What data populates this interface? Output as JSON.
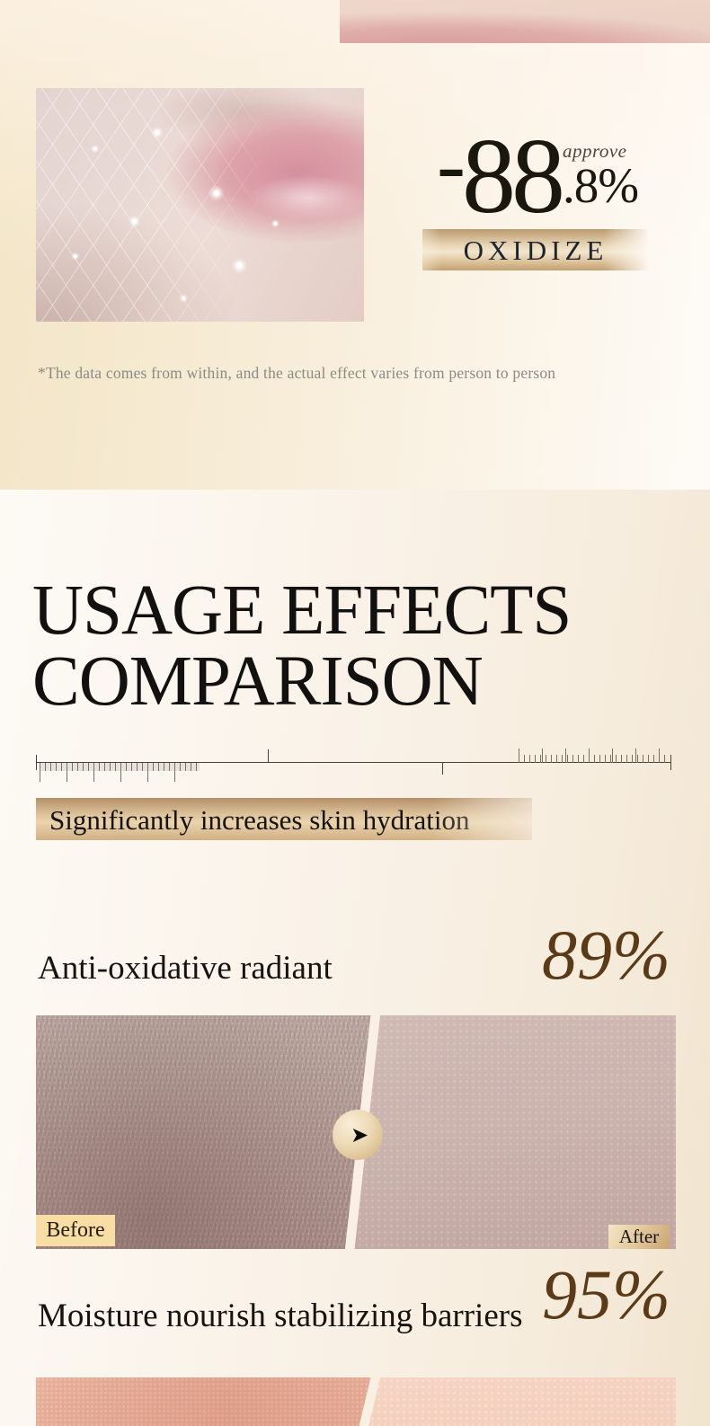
{
  "hero": {
    "stat": {
      "minus": "-",
      "big": "88",
      "small": ".8%",
      "note": "approve"
    },
    "banner_label": "OXIDIZE",
    "disclaimer": "*The data comes from within, and the actual effect varies from person to person"
  },
  "comparison": {
    "title_line1": "USAGE EFFECTS",
    "title_line2": "COMPARISON",
    "subtitle": "Significantly increases skin hydration levels",
    "items": [
      {
        "label": "Anti-oxidative radiant",
        "value": "89%",
        "before_label": "Before",
        "after_label": "After"
      },
      {
        "label": "Moisture nourish stabilizing barriers",
        "value": "95%"
      }
    ]
  },
  "icons": {
    "arrow_right": "➤"
  },
  "colors": {
    "accent_gold": "#d5b68b",
    "percent_brown": "#5b3a17",
    "text_dark": "#17130e",
    "muted_gray": "#8b8a86",
    "banner_text": "#1d2530",
    "before_tag_bg": "#f8dda4"
  }
}
